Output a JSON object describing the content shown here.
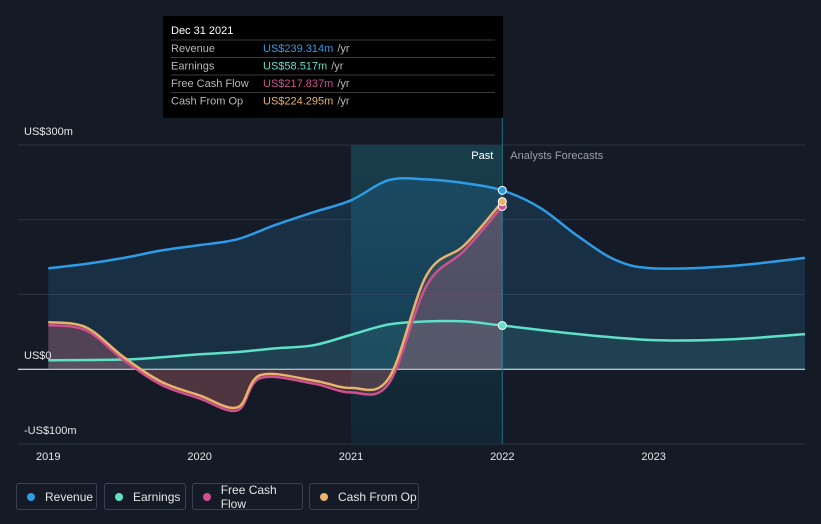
{
  "chart_data": {
    "type": "line",
    "xlim": [
      2018.8,
      2024
    ],
    "ylim": [
      -100,
      300
    ],
    "xticks": [
      2019,
      2020,
      2021,
      2022,
      2023
    ],
    "yticks": [
      {
        "value": 300,
        "label": "US$300m"
      },
      {
        "value": 0,
        "label": "US$0"
      },
      {
        "value": -100,
        "label": "-US$100m"
      }
    ],
    "ygrid": [
      300,
      200,
      100,
      0,
      -100
    ],
    "highlight": [
      2021,
      2022
    ],
    "past_label": "Past",
    "forecast_label": "Analysts Forecasts",
    "series": [
      {
        "name": "Revenue",
        "color": "#2e9be6",
        "x": [
          2019,
          2019.25,
          2019.5,
          2019.75,
          2020,
          2020.25,
          2020.5,
          2020.75,
          2021,
          2021.25,
          2021.5,
          2021.75,
          2022,
          2022.25,
          2022.5,
          2022.75,
          2023,
          2023.5,
          2024
        ],
        "values": [
          135,
          141,
          149,
          159,
          166,
          174,
          193,
          210,
          226,
          253,
          254,
          249,
          239.314,
          216,
          178,
          146,
          135,
          138,
          149
        ]
      },
      {
        "name": "Earnings",
        "color": "#5fe0c8",
        "x": [
          2019,
          2019.5,
          2019.75,
          2020,
          2020.25,
          2020.5,
          2020.75,
          2021,
          2021.25,
          2021.5,
          2021.75,
          2022,
          2022.5,
          2023,
          2023.5,
          2024
        ],
        "values": [
          12,
          13,
          16,
          20,
          23,
          28,
          32,
          46,
          60,
          64,
          64,
          58.517,
          47,
          39,
          40,
          47
        ]
      },
      {
        "name": "Free Cash Flow",
        "color": "#d0508f",
        "x": [
          2019,
          2019.25,
          2019.5,
          2019.75,
          2020,
          2020.25,
          2020.4,
          2020.75,
          2021,
          2021.25,
          2021.5,
          2021.75,
          2022
        ],
        "values": [
          59,
          52,
          12,
          -21,
          -39,
          -55,
          -12,
          -19,
          -31,
          -19,
          112,
          159,
          217.837
        ]
      },
      {
        "name": "Cash From Op",
        "color": "#e8b36a",
        "x": [
          2019,
          2019.25,
          2019.5,
          2019.75,
          2020,
          2020.25,
          2020.4,
          2020.75,
          2021,
          2021.25,
          2021.5,
          2021.75,
          2022
        ],
        "values": [
          63,
          56,
          16,
          -17,
          -35,
          -51,
          -8,
          -15,
          -25,
          -12,
          126,
          166,
          224.295
        ]
      }
    ],
    "tooltip": {
      "date": "Dec 31 2021",
      "rows": [
        {
          "name": "Revenue",
          "value": "US$239.314m",
          "unit": "/yr"
        },
        {
          "name": "Earnings",
          "value": "US$58.517m",
          "unit": "/yr"
        },
        {
          "name": "Free Cash Flow",
          "value": "US$217.837m",
          "unit": "/yr"
        },
        {
          "name": "Cash From Op",
          "value": "US$224.295m",
          "unit": "/yr"
        }
      ]
    }
  }
}
